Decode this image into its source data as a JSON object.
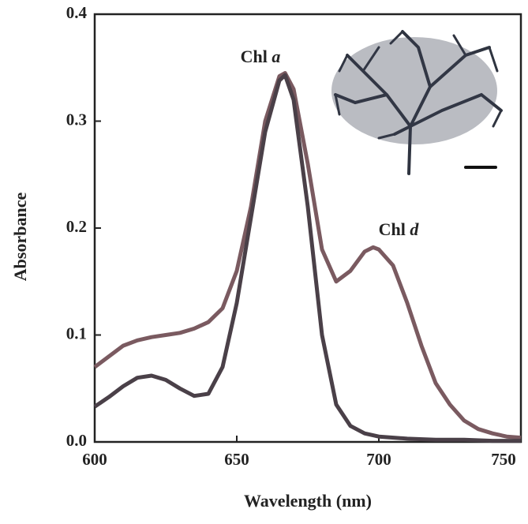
{
  "chart_data": {
    "type": "line",
    "x_label": "Wavelength (nm)",
    "y_label": "Absorbance",
    "xlim": [
      600,
      750
    ],
    "ylim": [
      0,
      0.4
    ],
    "xticks": [
      600,
      650,
      700,
      750
    ],
    "yticks": [
      {
        "value": 0,
        "label": "0.0"
      },
      {
        "value": 0.1,
        "label": "0.1"
      },
      {
        "value": 0.2,
        "label": "0.2"
      },
      {
        "value": 0.3,
        "label": "0.3"
      },
      {
        "value": 0.4,
        "label": "0.4"
      }
    ],
    "series": [
      {
        "color": "#7a5a60",
        "x": [
          600,
          605,
          610,
          615,
          620,
          625,
          630,
          635,
          640,
          645,
          650,
          655,
          660,
          665,
          667,
          670,
          675,
          680,
          685,
          690,
          695,
          698,
          700,
          705,
          710,
          715,
          720,
          725,
          730,
          735,
          740,
          745,
          750
        ],
        "values": [
          0.07,
          0.08,
          0.09,
          0.095,
          0.098,
          0.1,
          0.102,
          0.106,
          0.112,
          0.125,
          0.16,
          0.22,
          0.3,
          0.342,
          0.345,
          0.33,
          0.26,
          0.18,
          0.15,
          0.16,
          0.178,
          0.182,
          0.18,
          0.165,
          0.13,
          0.09,
          0.055,
          0.035,
          0.02,
          0.012,
          0.008,
          0.005,
          0.004
        ]
      },
      {
        "color": "#4a4048",
        "x": [
          600,
          605,
          610,
          615,
          620,
          625,
          630,
          635,
          640,
          645,
          650,
          655,
          660,
          665,
          667,
          670,
          675,
          680,
          685,
          690,
          695,
          700,
          710,
          720,
          730,
          740,
          750
        ],
        "values": [
          0.033,
          0.042,
          0.052,
          0.06,
          0.062,
          0.058,
          0.05,
          0.043,
          0.045,
          0.07,
          0.13,
          0.21,
          0.29,
          0.338,
          0.343,
          0.32,
          0.22,
          0.1,
          0.035,
          0.015,
          0.008,
          0.005,
          0.003,
          0.002,
          0.002,
          0.001,
          0.001
        ]
      }
    ],
    "annotations": [
      {
        "parts": [
          "Chl",
          "a"
        ]
      },
      {
        "parts": [
          "Chl",
          "d"
        ]
      }
    ]
  }
}
